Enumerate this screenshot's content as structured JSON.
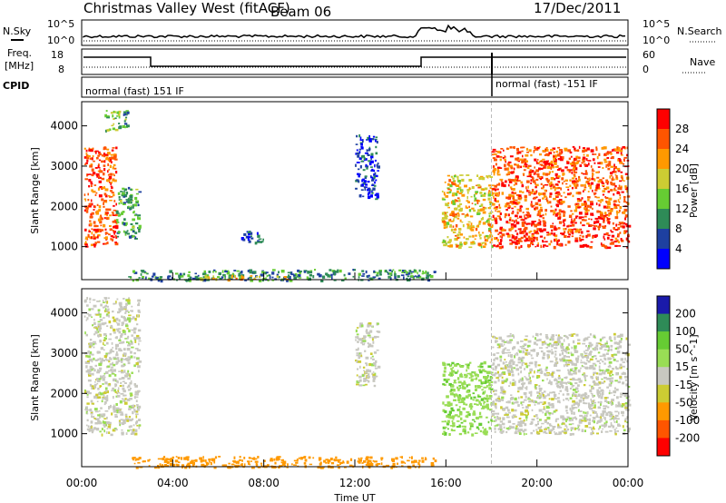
{
  "header": {
    "title": "Christmas Valley West (fitACF)",
    "beam": "Beam 06",
    "date": "17/Dec/2011"
  },
  "nsky_panel": {
    "left_label": "N.Sky",
    "right_label": "N.Search",
    "left_ticks": [
      "10^5",
      "10^0"
    ],
    "right_ticks": [
      "10^5",
      "10^0"
    ]
  },
  "freq_panel": {
    "left_label_1": "Freq.",
    "left_label_2": "[MHz]",
    "right_label": "Nave",
    "left_ticks": [
      "18",
      "8"
    ],
    "right_ticks": [
      "60",
      "0"
    ]
  },
  "cpid_panel": {
    "label": "CPID",
    "segments": [
      "normal (fast) 151 IF",
      "normal (fast) -151 IF"
    ]
  },
  "colors": {
    "power": [
      "#0000ff",
      "#1e40a0",
      "#2e8b57",
      "#66cc33",
      "#cccc33",
      "#ff9900",
      "#ff5500",
      "#ff0000"
    ],
    "velocity": [
      "#1a1aaa",
      "#2e8b57",
      "#66cc33",
      "#99dd55",
      "#c8c8c0",
      "#cccc33",
      "#ff9900",
      "#ff5500",
      "#ff0000"
    ]
  },
  "chart_data": [
    {
      "type": "heatmap",
      "name": "power",
      "xlabel": "",
      "ylabel": "Slant Range [km]",
      "xlim": [
        0,
        24
      ],
      "ylim": [
        180,
        4600
      ],
      "yticks": [
        1000,
        2000,
        3000,
        4000
      ],
      "colorbar": {
        "label": "Power [dB]",
        "range": [
          0,
          30
        ],
        "ticks": [
          "4",
          "8",
          "12",
          "16",
          "20",
          "24",
          "28"
        ]
      },
      "regions": [
        {
          "t": [
            0.1,
            1.5
          ],
          "r": [
            1000,
            3500
          ],
          "value": 26
        },
        {
          "t": [
            1.5,
            2.5
          ],
          "r": [
            1200,
            2500
          ],
          "value": 12
        },
        {
          "t": [
            1.0,
            2.0
          ],
          "r": [
            3900,
            4400
          ],
          "value": 12
        },
        {
          "t": [
            2,
            15.5
          ],
          "r": [
            180,
            450
          ],
          "value": 10
        },
        {
          "t": [
            5,
            9
          ],
          "r": [
            200,
            300
          ],
          "value": 20
        },
        {
          "t": [
            7,
            8
          ],
          "r": [
            1100,
            1400
          ],
          "value": 6
        },
        {
          "t": [
            12.0,
            13.0
          ],
          "r": [
            2200,
            3800
          ],
          "value": 5
        },
        {
          "t": [
            15.8,
            18.0
          ],
          "r": [
            1000,
            2800
          ],
          "value": 20
        },
        {
          "t": [
            18.0,
            24.0
          ],
          "r": [
            1000,
            1800
          ],
          "value": 28
        },
        {
          "t": [
            18.0,
            24.0
          ],
          "r": [
            1800,
            3500
          ],
          "value": 26
        }
      ]
    },
    {
      "type": "heatmap",
      "name": "velocity",
      "xlabel": "Time UT",
      "ylabel": "Slant Range [km]",
      "xlim": [
        0,
        24
      ],
      "ylim": [
        180,
        4600
      ],
      "xticks": [
        "00:00",
        "04:00",
        "08:00",
        "12:00",
        "16:00",
        "20:00",
        "00:00"
      ],
      "yticks": [
        1000,
        2000,
        3000,
        4000
      ],
      "colorbar": {
        "label": "Velocity [m s^-1]",
        "ticks": [
          "200",
          "100",
          "50",
          "15",
          "-15",
          "-50",
          "-100",
          "-200"
        ]
      },
      "regions": [
        {
          "t": [
            0.1,
            2.5
          ],
          "r": [
            1000,
            4400
          ],
          "value": 0
        },
        {
          "t": [
            2,
            15.5
          ],
          "r": [
            180,
            450
          ],
          "value": -80
        },
        {
          "t": [
            12.0,
            13.0
          ],
          "r": [
            2200,
            3800
          ],
          "value": 0
        },
        {
          "t": [
            15.8,
            18.0
          ],
          "r": [
            1000,
            2800
          ],
          "value": 40
        },
        {
          "t": [
            18.0,
            24.0
          ],
          "r": [
            1000,
            3500
          ],
          "value": 0
        }
      ]
    }
  ]
}
